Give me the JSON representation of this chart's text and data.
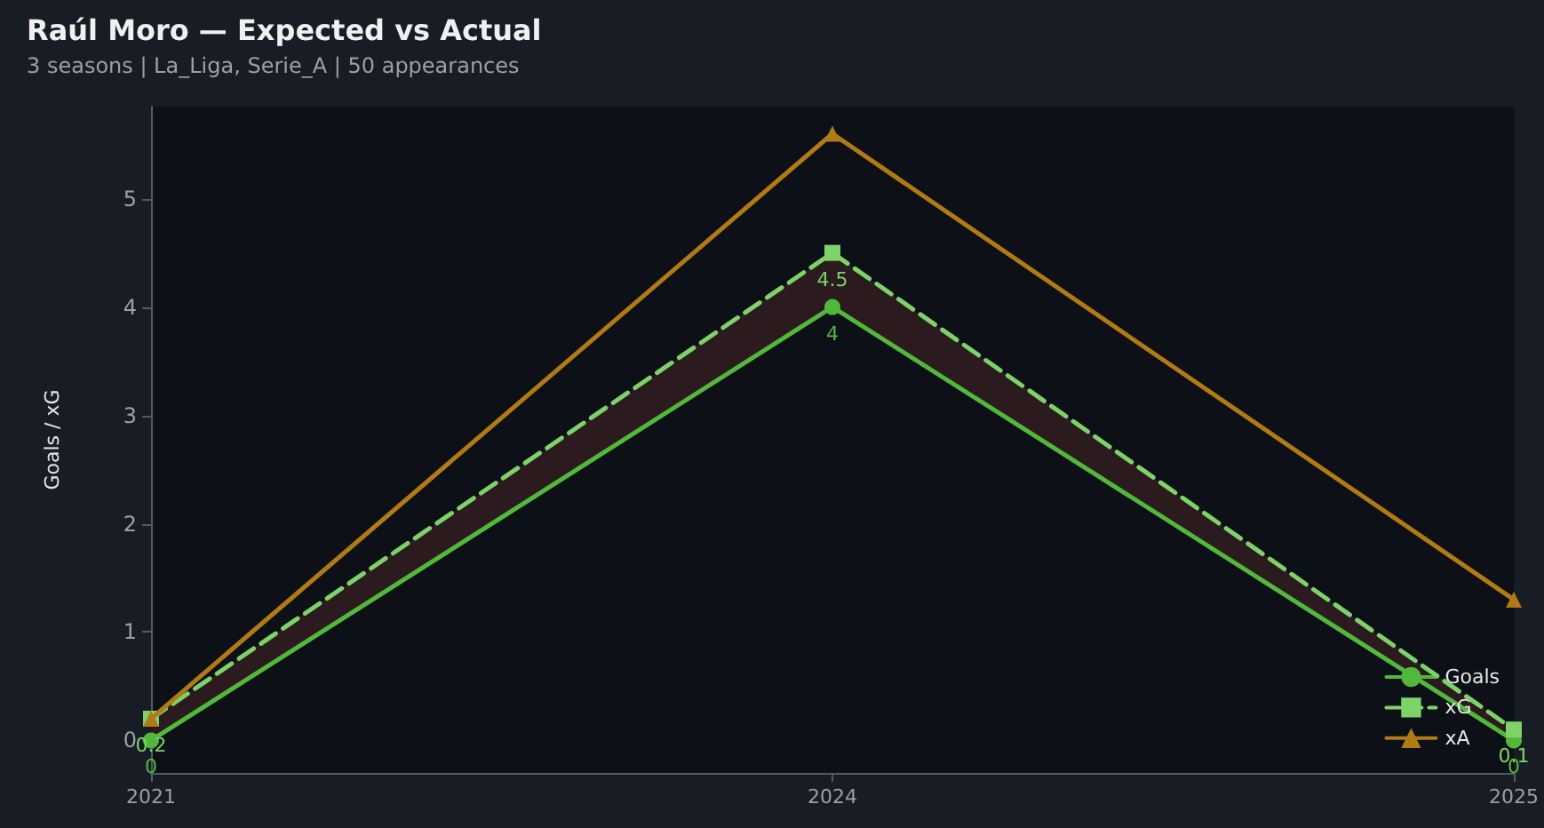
{
  "chart_data": {
    "type": "line",
    "title": "Raúl Moro — Expected vs Actual",
    "subtitle": "3 seasons | La_Liga, Serie_A | 50 appearances",
    "ylabel": "Goals / xG",
    "categories": [
      "2021",
      "2024",
      "2025"
    ],
    "series": [
      {
        "name": "Goals",
        "color": "#52b83c",
        "values": [
          0,
          4,
          0
        ],
        "marker": "circle",
        "line_style": "solid",
        "value_labels": [
          "0",
          "4",
          "0"
        ]
      },
      {
        "name": "xG",
        "color": "#7dd36a",
        "values": [
          0.2,
          4.5,
          0.1
        ],
        "marker": "square",
        "line_style": "dashed",
        "value_labels": [
          "0.2",
          "4.5",
          "0.1"
        ],
        "lower": [
          0,
          4,
          0
        ],
        "upper": [
          0.2,
          4.5,
          0.1
        ]
      },
      {
        "name": "xA",
        "color": "#b07a14",
        "values": [
          0.2,
          5.6,
          1.3
        ],
        "marker": "triangle",
        "line_style": "solid"
      }
    ],
    "ylim": [
      -0.3,
      5.85
    ],
    "yticks": [
      0,
      1,
      2,
      3,
      4,
      5
    ],
    "grid": false,
    "legend": "bottom right"
  }
}
